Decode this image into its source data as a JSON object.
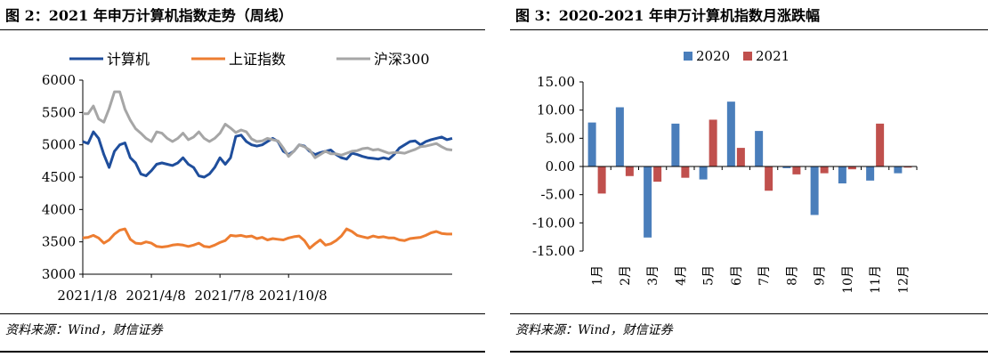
{
  "left": {
    "title": "图 2：2021 年申万计算机指数走势（周线）",
    "source": "资料来源：Wind，财信证券",
    "chart_data": {
      "type": "line",
      "legend_position": "top",
      "grid": false,
      "ylim": [
        3000,
        6000
      ],
      "yticks": [
        "3000",
        "3500",
        "4000",
        "4500",
        "5000",
        "5500",
        "6000"
      ],
      "xticks": [
        "2021/1/8",
        "2021/4/8",
        "2021/7/8",
        "2021/10/8"
      ],
      "series": [
        {
          "name": "计算机",
          "color": "#1f4e9c",
          "values": [
            5050,
            5020,
            5200,
            5100,
            4850,
            4650,
            4900,
            5000,
            5030,
            4800,
            4720,
            4550,
            4520,
            4600,
            4700,
            4720,
            4700,
            4680,
            4720,
            4800,
            4700,
            4650,
            4520,
            4500,
            4550,
            4650,
            4800,
            4700,
            4800,
            5130,
            5150,
            5050,
            5000,
            4980,
            5000,
            5050,
            5100,
            5050,
            4900,
            4850,
            4900,
            5000,
            4980,
            4900,
            4850,
            4880,
            4900,
            4920,
            4850,
            4800,
            4780,
            4870,
            4850,
            4820,
            4800,
            4790,
            4780,
            4800,
            4780,
            4850,
            4950,
            5000,
            5050,
            5060,
            5000,
            5050,
            5080,
            5100,
            5120,
            5080,
            5100
          ]
        },
        {
          "name": "上证指数",
          "color": "#ed7d31",
          "values": [
            3560,
            3570,
            3600,
            3560,
            3480,
            3530,
            3620,
            3680,
            3700,
            3540,
            3480,
            3470,
            3500,
            3480,
            3430,
            3420,
            3430,
            3450,
            3460,
            3450,
            3430,
            3450,
            3480,
            3430,
            3420,
            3450,
            3490,
            3520,
            3600,
            3590,
            3600,
            3580,
            3590,
            3550,
            3570,
            3530,
            3550,
            3540,
            3530,
            3560,
            3580,
            3590,
            3520,
            3400,
            3470,
            3530,
            3450,
            3470,
            3520,
            3590,
            3700,
            3660,
            3600,
            3580,
            3560,
            3590,
            3570,
            3580,
            3560,
            3560,
            3530,
            3520,
            3550,
            3560,
            3570,
            3600,
            3640,
            3660,
            3630,
            3620,
            3620
          ]
        },
        {
          "name": "沪深300",
          "color": "#a6a6a6",
          "values": [
            5480,
            5480,
            5600,
            5400,
            5350,
            5560,
            5820,
            5820,
            5550,
            5380,
            5250,
            5180,
            5100,
            5050,
            5200,
            5180,
            5100,
            5050,
            5100,
            5180,
            5080,
            5120,
            5200,
            5100,
            5050,
            5100,
            5180,
            5320,
            5260,
            5190,
            5230,
            5200,
            5090,
            5050,
            5060,
            5100,
            5080,
            5060,
            4950,
            4820,
            4900,
            5000,
            4970,
            4920,
            4800,
            4850,
            4900,
            4860,
            4860,
            4840,
            4870,
            4900,
            4910,
            4940,
            4950,
            4920,
            4930,
            4900,
            4870,
            4880,
            4880,
            4870,
            4900,
            4930,
            4970,
            4980,
            5000,
            5020,
            4970,
            4930,
            4920
          ]
        }
      ]
    }
  },
  "right": {
    "title": "图 3：2020-2021 年申万计算机指数月涨跌幅",
    "source": "资料来源：Wind，财信证券",
    "chart_data": {
      "type": "bar",
      "legend_position": "top",
      "grid": false,
      "ylim": [
        -15,
        15
      ],
      "yticks": [
        "15.00",
        "10.00",
        "5.00",
        "0.00",
        "-5.00",
        "-10.00",
        "-15.00"
      ],
      "categories": [
        "1月",
        "2月",
        "3月",
        "4月",
        "5月",
        "6月",
        "7月",
        "8月",
        "9月",
        "10月",
        "11月",
        "12月"
      ],
      "series": [
        {
          "name": "2020",
          "color": "#4a7ebb",
          "values": [
            7.8,
            10.5,
            -12.6,
            7.6,
            -2.3,
            11.5,
            6.3,
            -0.3,
            -8.6,
            -3.0,
            -2.5,
            -1.2
          ]
        },
        {
          "name": "2021",
          "color": "#c0504d",
          "values": [
            -4.8,
            -1.7,
            -2.7,
            -2.0,
            8.3,
            3.3,
            -4.3,
            -1.4,
            -1.2,
            -0.5,
            7.6,
            -0.2
          ]
        }
      ]
    }
  }
}
